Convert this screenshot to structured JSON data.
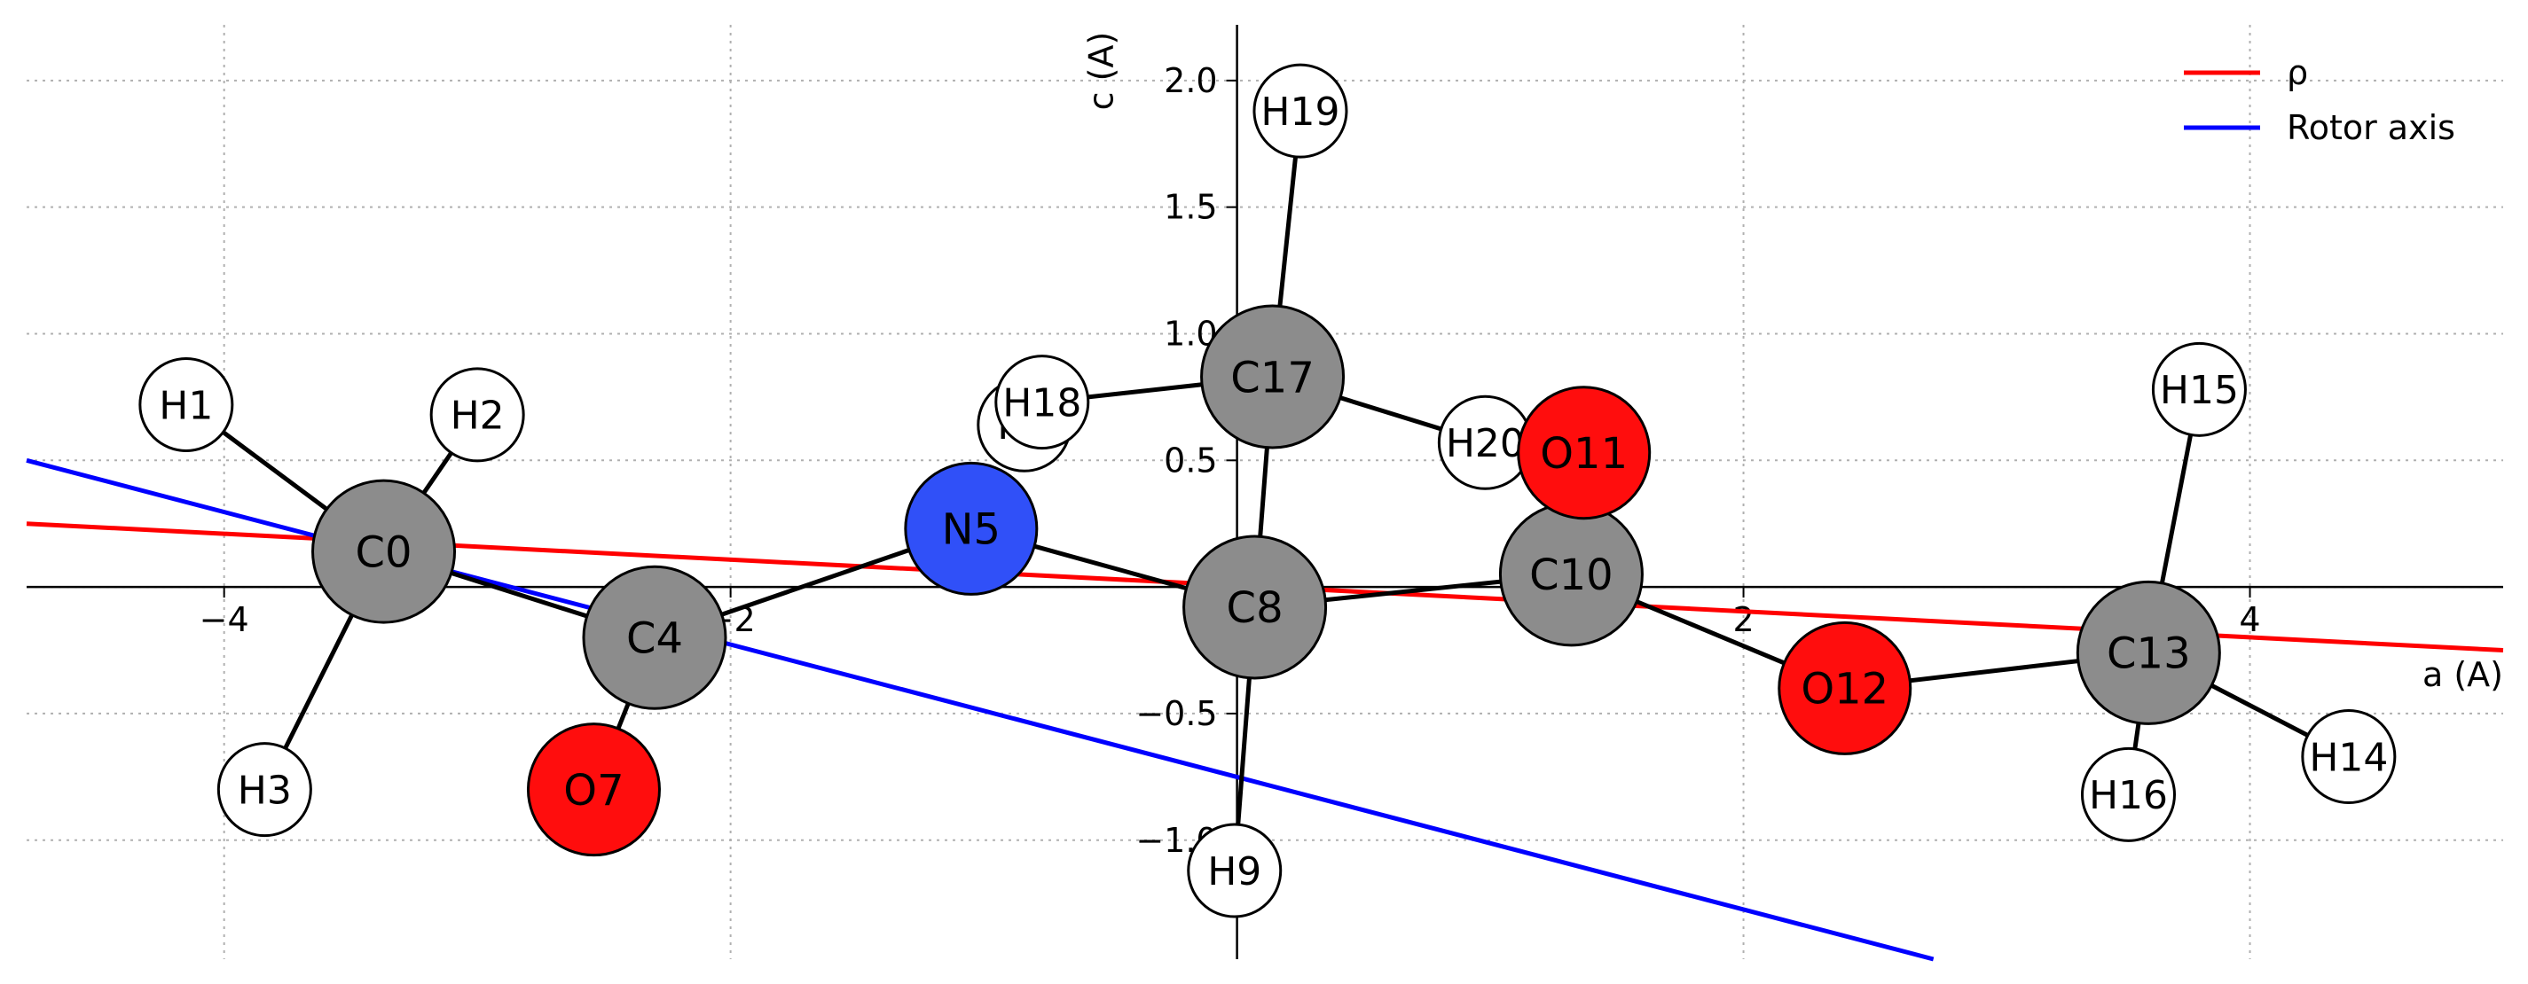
{
  "chart_data": {
    "type": "scatter",
    "xlabel": "a (A)",
    "ylabel": "c (A)",
    "xlim": [
      -4.78,
      5.0
    ],
    "ylim": [
      -1.47,
      2.22
    ],
    "grid": true,
    "legend": {
      "placement": "top-right",
      "entries": [
        {
          "label": "ρ",
          "color": "#ff0000"
        },
        {
          "label": "Rotor axis",
          "color": "#0000ff"
        }
      ]
    },
    "x_ticks": [
      {
        "value": -4,
        "label": "−4"
      },
      {
        "value": -2,
        "label": "−2"
      },
      {
        "value": 2,
        "label": "2"
      },
      {
        "value": 4,
        "label": "4"
      }
    ],
    "y_ticks": [
      {
        "value": 2.0,
        "label": "2.0"
      },
      {
        "value": 1.5,
        "label": "1.5"
      },
      {
        "value": 1.0,
        "label": "1.0"
      },
      {
        "value": 0.5,
        "label": "0.5"
      },
      {
        "value": 0,
        "label": "0"
      },
      {
        "value": -0.5,
        "label": "−0.5"
      },
      {
        "value": -1.0,
        "label": "−1.0"
      }
    ],
    "lines": [
      {
        "name": "ρ",
        "color": "#ff0000",
        "points": [
          [
            -4.78,
            0.25
          ],
          [
            5.0,
            -0.25
          ]
        ]
      },
      {
        "name": "Rotor axis",
        "color": "#0000ff",
        "points": [
          [
            -4.78,
            0.5
          ],
          [
            2.75,
            -1.47
          ]
        ]
      }
    ],
    "atoms": [
      {
        "id": "C0",
        "x": -3.37,
        "y": 0.14,
        "el": "C"
      },
      {
        "id": "H1",
        "x": -4.15,
        "y": 0.72,
        "el": "H"
      },
      {
        "id": "H2",
        "x": -3.0,
        "y": 0.68,
        "el": "H"
      },
      {
        "id": "H3",
        "x": -3.84,
        "y": -0.8,
        "el": "H"
      },
      {
        "id": "C4",
        "x": -2.3,
        "y": -0.2,
        "el": "C"
      },
      {
        "id": "N5",
        "x": -1.05,
        "y": 0.23,
        "el": "N"
      },
      {
        "id": "H6",
        "x": -0.84,
        "y": 0.64,
        "el": "H"
      },
      {
        "id": "O7",
        "x": -2.54,
        "y": -0.8,
        "el": "O"
      },
      {
        "id": "C8",
        "x": 0.07,
        "y": -0.08,
        "el": "C"
      },
      {
        "id": "H9",
        "x": -0.01,
        "y": -1.12,
        "el": "H"
      },
      {
        "id": "C10",
        "x": 1.32,
        "y": 0.05,
        "el": "C"
      },
      {
        "id": "O11",
        "x": 1.37,
        "y": 0.53,
        "el": "O"
      },
      {
        "id": "O12",
        "x": 2.4,
        "y": -0.4,
        "el": "O"
      },
      {
        "id": "C13",
        "x": 3.6,
        "y": -0.26,
        "el": "C"
      },
      {
        "id": "H14",
        "x": 4.39,
        "y": -0.67,
        "el": "H"
      },
      {
        "id": "H15",
        "x": 3.8,
        "y": 0.78,
        "el": "H"
      },
      {
        "id": "H16",
        "x": 3.52,
        "y": -0.82,
        "el": "H"
      },
      {
        "id": "C17",
        "x": 0.14,
        "y": 0.83,
        "el": "C"
      },
      {
        "id": "H18",
        "x": -0.77,
        "y": 0.73,
        "el": "H"
      },
      {
        "id": "H19",
        "x": 0.25,
        "y": 1.88,
        "el": "H"
      },
      {
        "id": "H20",
        "x": 0.98,
        "y": 0.57,
        "el": "H"
      }
    ],
    "bonds": [
      [
        "C0",
        "H1"
      ],
      [
        "C0",
        "H2"
      ],
      [
        "C0",
        "H3"
      ],
      [
        "C0",
        "C4"
      ],
      [
        "C4",
        "O7"
      ],
      [
        "C4",
        "N5"
      ],
      [
        "N5",
        "C8"
      ],
      [
        "C8",
        "H9"
      ],
      [
        "C8",
        "C10"
      ],
      [
        "C8",
        "C17"
      ],
      [
        "C10",
        "O12"
      ],
      [
        "O12",
        "C13"
      ],
      [
        "C13",
        "H14"
      ],
      [
        "C13",
        "H15"
      ],
      [
        "C13",
        "H16"
      ],
      [
        "C17",
        "H18"
      ],
      [
        "C17",
        "H19"
      ],
      [
        "C17",
        "H20"
      ]
    ],
    "element_colors": {
      "C": "#8c8c8c",
      "H": "#ffffff",
      "N": "#3050f8",
      "O": "#ff0d0d"
    }
  }
}
